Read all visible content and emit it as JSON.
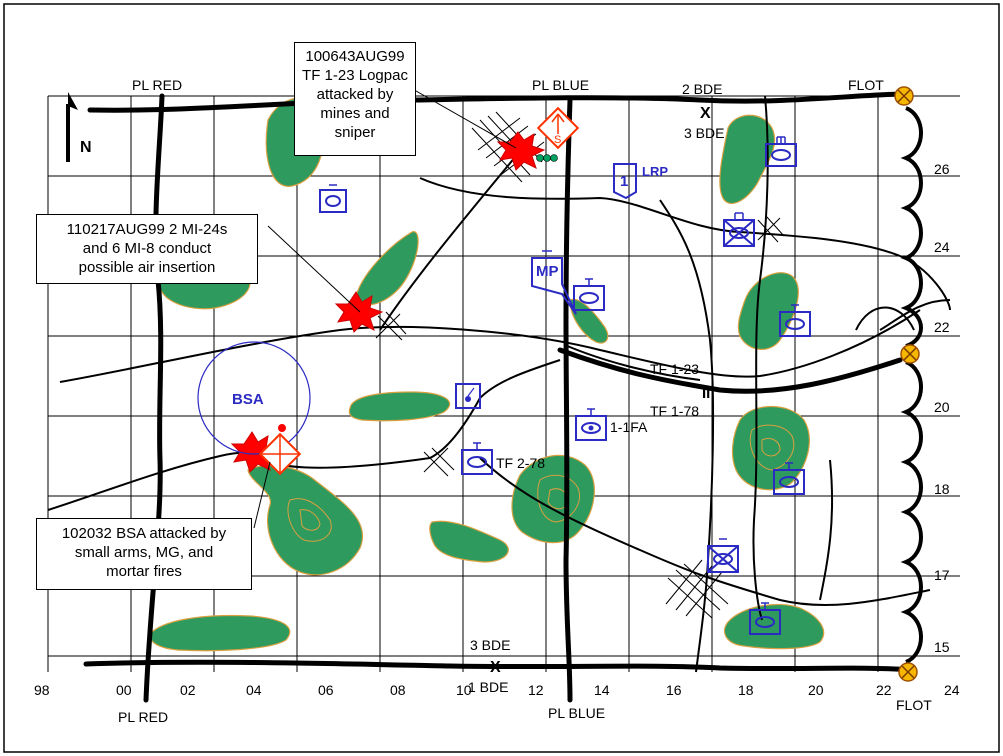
{
  "north_label": "N",
  "phase_lines": {
    "red_top": "PL RED",
    "red_bottom": "PL RED",
    "blue_top": "PL BLUE",
    "blue_bottom": "PL BLUE",
    "flot_top": "FLOT",
    "flot_bottom": "FLOT"
  },
  "boundaries": {
    "top_north": "2 BDE",
    "top_south": "3 BDE",
    "bottom_north": "3 BDE",
    "bottom_south": "1 BDE",
    "tf_north": "TF 1-23",
    "tf_south": "TF 1-78"
  },
  "grid": {
    "x_labels": [
      "98",
      "00",
      "02",
      "04",
      "06",
      "08",
      "10",
      "12",
      "14",
      "16",
      "18",
      "20",
      "22",
      "24"
    ],
    "y_labels": [
      "26",
      "24",
      "22",
      "20",
      "18",
      "17",
      "15"
    ]
  },
  "units": {
    "lrp_number": "1",
    "lrp": "LRP",
    "mp": "MP",
    "bsa": "BSA",
    "tf_2_78": "TF 2-78",
    "fa_1_1": "1-1FA",
    "supply_letter": "S"
  },
  "callouts": {
    "logpac": [
      "100643AUG99",
      "TF 1-23 Logpac",
      "attacked by",
      "mines and",
      "sniper"
    ],
    "air": [
      "110217AUG99 2 MI-24s",
      "and 6 MI-8 conduct",
      "possible air insertion"
    ],
    "bsa": [
      "102032 BSA attacked by",
      "small arms, MG, and",
      "mortar fires"
    ]
  },
  "colors": {
    "terrain_fill": "#2e9a5e",
    "terrain_contour": "#d8a040",
    "unit_symbol": "#2b2bc4",
    "attack_burst": "#ff0000",
    "supply_diamond": "#ff3300",
    "flot_marker": "#f5b700"
  }
}
